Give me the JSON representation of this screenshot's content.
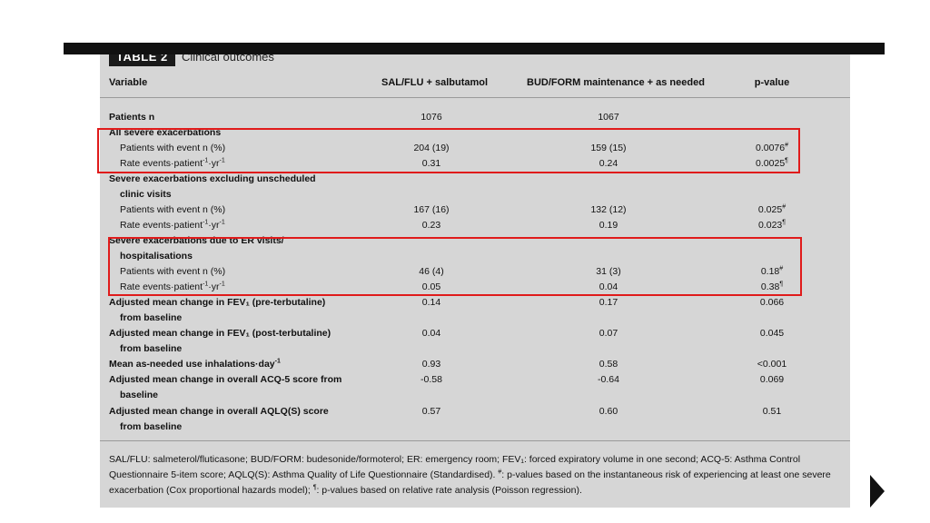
{
  "table": {
    "tag": "TABLE 2",
    "title": "Clinical outcomes",
    "headers": {
      "variable": "Variable",
      "col1": "SAL/FLU + salbutamol",
      "col2": "BUD/FORM maintenance + as needed",
      "col3": "p-value"
    },
    "rows": {
      "patients_n": {
        "label": "Patients n",
        "v1": "1076",
        "v2": "1067",
        "p": ""
      },
      "all_severe": {
        "label": "All severe exacerbations"
      },
      "all_pe": {
        "label": "Patients with event n (%)",
        "v1": "204 (19)",
        "v2": "159 (15)",
        "p": "0.0076",
        "pmark": "#"
      },
      "all_rate": {
        "label": "Rate events·patient",
        "sup1": "-1",
        "mid": "·yr",
        "sup2": "-1",
        "v1": "0.31",
        "v2": "0.24",
        "p": "0.0025",
        "pmark": "¶"
      },
      "excl_head1": {
        "label": "Severe exacerbations excluding unscheduled"
      },
      "excl_head2": {
        "label": "clinic visits"
      },
      "excl_pe": {
        "label": "Patients with event n (%)",
        "v1": "167 (16)",
        "v2": "132 (12)",
        "p": "0.025",
        "pmark": "#"
      },
      "excl_rate": {
        "label": "Rate events·patient",
        "sup1": "-1",
        "mid": "·yr",
        "sup2": "-1",
        "v1": "0.23",
        "v2": "0.19",
        "p": "0.023",
        "pmark": "¶"
      },
      "er_head1": {
        "label": "Severe exacerbations due to ER visits/"
      },
      "er_head2": {
        "label": "hospitalisations"
      },
      "er_pe": {
        "label": "Patients with event n (%)",
        "v1": "46 (4)",
        "v2": "31 (3)",
        "p": "0.18",
        "pmark": "#"
      },
      "er_rate": {
        "label": "Rate events·patient",
        "sup1": "-1",
        "mid": "·yr",
        "sup2": "-1",
        "v1": "0.05",
        "v2": "0.04",
        "p": "0.38",
        "pmark": "¶"
      },
      "fev_pre1": {
        "label": "Adjusted mean change in FEV₁ (pre-terbutaline)",
        "v1": "0.14",
        "v2": "0.17",
        "p": "0.066"
      },
      "fev_pre2": {
        "label": "from baseline"
      },
      "fev_post1": {
        "label": "Adjusted mean change in FEV₁ (post-terbutaline)",
        "v1": "0.04",
        "v2": "0.07",
        "p": "0.045"
      },
      "fev_post2": {
        "label": "from baseline"
      },
      "asneeded": {
        "label": "Mean as-needed use inhalations·day",
        "sup": "-1",
        "v1": "0.93",
        "v2": "0.58",
        "p": "<0.001"
      },
      "acq1": {
        "label": "Adjusted mean change in overall ACQ-5 score from",
        "v1": "-0.58",
        "v2": "-0.64",
        "p": "0.069"
      },
      "acq2": {
        "label": "baseline"
      },
      "aqlq1": {
        "label": "Adjusted mean change in overall AQLQ(S) score",
        "v1": "0.57",
        "v2": "0.60",
        "p": "0.51"
      },
      "aqlq2": {
        "label": "from baseline"
      }
    },
    "footnote": {
      "part1": "SAL/FLU: salmeterol/fluticasone; BUD/FORM: budesonide/formoterol; ER: emergency room; FEV₁: forced expiratory volume in one second; ACQ-5: Asthma Control Questionnaire 5-item score; AQLQ(S): Asthma Quality of Life Questionnaire (Standardised). ",
      "mark1": "#",
      "part2": ": p-values based on the instantaneous risk of experiencing at least one severe exacerbation (Cox proportional hazards model); ",
      "mark2": "¶",
      "part3": ": p-values based on relative rate analysis (Poisson regression)."
    }
  },
  "highlight_color": "#e01b1b",
  "nav": {
    "icon": "next-arrow-icon"
  }
}
